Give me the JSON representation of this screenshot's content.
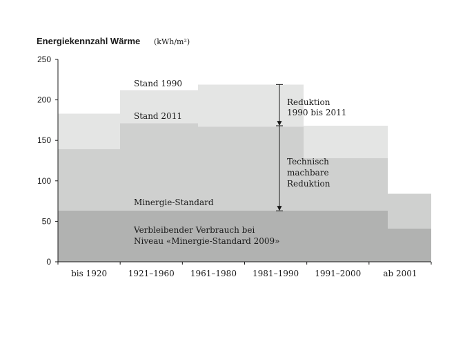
{
  "chart_data": {
    "type": "area",
    "title": "Energiekennzahl Wärme",
    "unit": "(kWh/m²)",
    "ylim": [
      0,
      250
    ],
    "yticks": [
      0,
      50,
      100,
      150,
      200,
      250
    ],
    "categories": [
      "bis 1920",
      "1921–1960",
      "1961–1980",
      "1981–1990",
      "1991–2000",
      "ab 2001"
    ],
    "series": [
      {
        "name": "Stand 1990",
        "color": "#e4e5e4",
        "values": [
          183,
          212,
          219,
          219,
          168,
          84
        ]
      },
      {
        "name": "Stand 2011",
        "color": "#cfd0cf",
        "values": [
          139,
          171,
          167,
          167,
          128,
          84
        ]
      },
      {
        "name": "Minergie-Standard",
        "color": "#b1b2b1",
        "values": [
          63,
          63,
          63,
          63,
          63,
          41
        ]
      }
    ],
    "segments": [
      {
        "category": "bis 1920",
        "from": 0,
        "to": 1
      },
      {
        "category": "1921–1960",
        "from": 1,
        "to": 2.25
      },
      {
        "category": "1961–1980",
        "from": 2.25,
        "to": 3.75
      },
      {
        "category": "1981–1990",
        "from": 3.75,
        "to": 3.95
      },
      {
        "category": "1991–2000",
        "from": 3.95,
        "to": 5.3
      },
      {
        "category": "ab 2001",
        "from": 5.3,
        "to": 6
      }
    ],
    "annotations": {
      "stand_1990": "Stand 1990",
      "stand_2011": "Stand 2011",
      "minergie": "Minergie-Standard",
      "remaining_line1": "Verbleibender Verbrauch bei",
      "remaining_line2": "Niveau «Minergie-Standard 2009»",
      "reduction_line1": "Reduktion",
      "reduction_line2": "1990 bis 2011",
      "technical_line1": "Technisch",
      "technical_line2": "machbare",
      "technical_line3": "Reduktion"
    },
    "arrows": [
      {
        "name": "reduction-1990-2011-arrow",
        "y_top": 219,
        "y_bottom": 168
      },
      {
        "name": "technical-reduction-arrow",
        "y_top": 168,
        "y_bottom": 63
      }
    ]
  }
}
